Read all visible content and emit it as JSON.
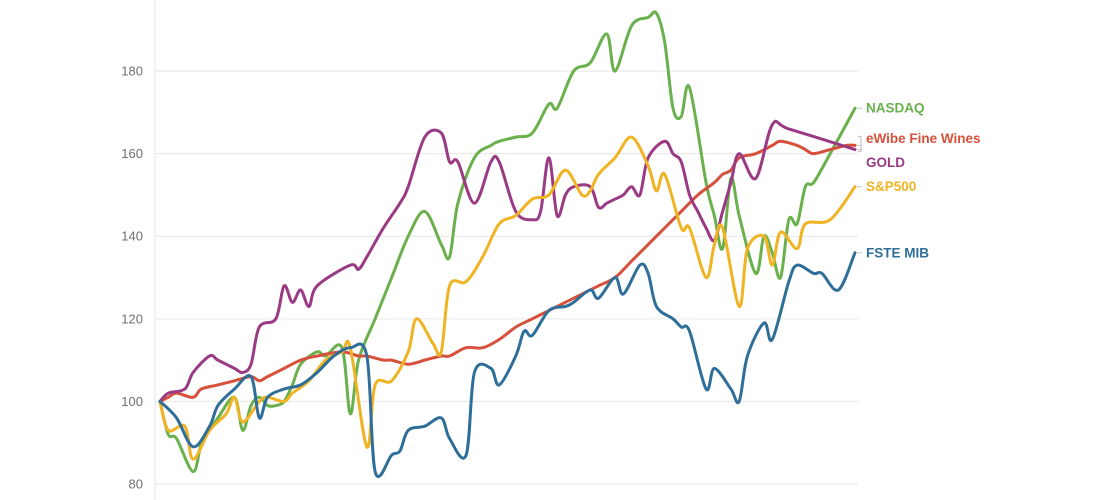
{
  "chart_data": {
    "type": "line",
    "title": "",
    "xlabel": "",
    "ylabel": "",
    "x": [
      0,
      1,
      2,
      3,
      4,
      5,
      6,
      7,
      8,
      9,
      10,
      11,
      12,
      13,
      14,
      15,
      16,
      17,
      18,
      19,
      20,
      21,
      22,
      23,
      24,
      25,
      26,
      27,
      28,
      29,
      30,
      31,
      32,
      33,
      34,
      35,
      36,
      37,
      38,
      39,
      40,
      41,
      42,
      43,
      44,
      45,
      46,
      47,
      48,
      49,
      50,
      51,
      52,
      53,
      54,
      55,
      56,
      57,
      58,
      59,
      60,
      61,
      62,
      63,
      64,
      65,
      66,
      67,
      68,
      69,
      70,
      71,
      72,
      73,
      74,
      75,
      76,
      77,
      78,
      79,
      80,
      81,
      82,
      83,
      84
    ],
    "ylim": [
      80,
      196
    ],
    "yticks": [
      80,
      100,
      120,
      140,
      160,
      180
    ],
    "yticklabels": [
      "80",
      "100",
      "120",
      "140",
      "160",
      "180"
    ],
    "grid": true,
    "series": [
      {
        "name": "NASDAQ",
        "color": "#6ab04c",
        "values": [
          100,
          92,
          91,
          83,
          90,
          93,
          96,
          101,
          93,
          99,
          101,
          99,
          99,
          100,
          104,
          109,
          112,
          111,
          113,
          97,
          110,
          120,
          130,
          140,
          146,
          138,
          135,
          148,
          159,
          162,
          163,
          164,
          165,
          172,
          171,
          180,
          182,
          189,
          180,
          191,
          193,
          194,
          187,
          171,
          169,
          176,
          153,
          145,
          137,
          154,
          145,
          131,
          140,
          136,
          130,
          144,
          143,
          152,
          153,
          160,
          171
        ],
        "x": [
          0,
          1,
          2,
          4,
          5,
          6,
          7,
          9,
          10,
          11,
          12,
          13,
          14,
          15,
          16,
          17,
          19,
          20,
          22,
          23,
          24,
          26,
          28,
          30,
          32,
          34,
          35,
          36,
          38,
          40,
          41,
          43,
          45,
          47,
          48,
          50,
          52,
          54,
          55,
          57,
          59,
          60,
          61,
          62,
          63,
          64,
          66,
          67,
          68,
          69,
          70,
          72,
          73,
          74,
          75,
          76,
          77,
          78,
          79,
          81,
          84
        ]
      },
      {
        "name": "eWibe Fine Wines",
        "color": "#d6503b",
        "values": [
          100,
          101,
          102,
          101,
          103,
          104,
          105,
          106,
          105,
          106,
          108,
          110,
          111,
          112,
          111,
          111,
          110,
          110,
          109,
          110,
          111,
          111,
          113,
          113,
          115,
          118,
          120,
          122,
          124,
          126,
          128,
          130,
          134,
          138,
          142,
          146,
          150,
          153,
          155,
          156,
          159,
          160,
          162,
          163,
          162,
          161,
          160,
          161,
          162,
          162
        ],
        "x": [
          0,
          1,
          2,
          4,
          5,
          7,
          9,
          11,
          12,
          13,
          15,
          17,
          19,
          22,
          24,
          25,
          27,
          28,
          30,
          32,
          34,
          35,
          37,
          39,
          41,
          43,
          45,
          47,
          49,
          51,
          53,
          55,
          57,
          59,
          61,
          63,
          65,
          67,
          68,
          69,
          70,
          72,
          74,
          75,
          77,
          78,
          79,
          81,
          83,
          84
        ]
      },
      {
        "name": "GOLD",
        "color": "#9b3a84",
        "values": [
          100,
          102,
          103,
          107,
          111,
          110,
          108,
          107,
          109,
          118,
          120,
          128,
          124,
          127,
          123,
          128,
          133,
          132,
          135,
          142,
          148,
          152,
          164,
          165,
          158,
          158,
          148,
          158,
          158,
          146,
          144,
          146,
          159,
          145,
          150,
          152,
          152,
          147,
          148,
          149,
          150,
          152,
          150,
          159,
          163,
          160,
          158,
          150,
          146,
          142,
          139,
          146,
          153,
          160,
          154,
          167,
          166,
          161
        ],
        "x": [
          0,
          1,
          3,
          4,
          6,
          7,
          9,
          10,
          11,
          12,
          14,
          15,
          16,
          17,
          18,
          19,
          23,
          24,
          25,
          27,
          29,
          30,
          32,
          34,
          35,
          36,
          38,
          40,
          41,
          43,
          45,
          46,
          47,
          48,
          49,
          50,
          52,
          53,
          54,
          55,
          56,
          57,
          58,
          59,
          61,
          62,
          63,
          64,
          65,
          66,
          67,
          68,
          69,
          70,
          72,
          74,
          76,
          84
        ]
      },
      {
        "name": "S&P500",
        "color": "#f0b323",
        "values": [
          100,
          93,
          94,
          86,
          93,
          97,
          101,
          95,
          100,
          101,
          100,
          102,
          105,
          110,
          112,
          113,
          89,
          104,
          105,
          112,
          120,
          114,
          112,
          128,
          129,
          135,
          143,
          145,
          149,
          150,
          156,
          150,
          151,
          155,
          159,
          164,
          157,
          151,
          155,
          142,
          142,
          130,
          138,
          142,
          123,
          137,
          140,
          133,
          141,
          137,
          143,
          144,
          152
        ],
        "x": [
          0,
          1,
          3,
          4,
          6,
          8,
          9,
          10,
          12,
          13,
          15,
          16,
          18,
          20,
          22,
          23,
          25,
          26,
          28,
          30,
          31,
          33,
          34,
          35,
          37,
          39,
          41,
          43,
          45,
          47,
          49,
          51,
          52,
          53,
          55,
          57,
          59,
          60,
          61,
          63,
          64,
          66,
          67,
          68,
          70,
          71,
          73,
          74,
          75,
          77,
          78,
          81,
          84
        ]
      },
      {
        "name": "FSTE MIB",
        "color": "#2e6e99",
        "values": [
          100,
          96,
          89,
          94,
          99,
          103,
          106,
          96,
          101,
          103,
          104,
          107,
          111,
          113,
          111,
          83,
          87,
          88,
          93,
          94,
          96,
          91,
          87,
          107,
          108,
          104,
          111,
          117,
          116,
          122,
          123,
          124,
          127,
          125,
          130,
          126,
          133,
          131,
          123,
          120,
          118,
          117,
          103,
          108,
          103,
          100,
          111,
          119,
          115,
          129,
          133,
          131,
          131,
          127,
          136
        ],
        "x": [
          0,
          2,
          4,
          6,
          7,
          9,
          11,
          12,
          13,
          15,
          17,
          19,
          21,
          23,
          25,
          26,
          28,
          29,
          30,
          32,
          34,
          35,
          37,
          38,
          40,
          41,
          43,
          44,
          45,
          47,
          49,
          50,
          52,
          53,
          55,
          56,
          58,
          59,
          60,
          62,
          63,
          64,
          66,
          67,
          69,
          70,
          71,
          73,
          74,
          76,
          77,
          79,
          80,
          82,
          84
        ]
      }
    ],
    "labels": [
      {
        "series": "NASDAQ",
        "text": "NASDAQ"
      },
      {
        "series": "eWibe Fine Wines",
        "text": "eWibe Fine Wines"
      },
      {
        "series": "GOLD",
        "text": "GOLD"
      },
      {
        "series": "S&P500",
        "text": "S&P500"
      },
      {
        "series": "FSTE MIB",
        "text": "FSTE MIB"
      }
    ]
  }
}
